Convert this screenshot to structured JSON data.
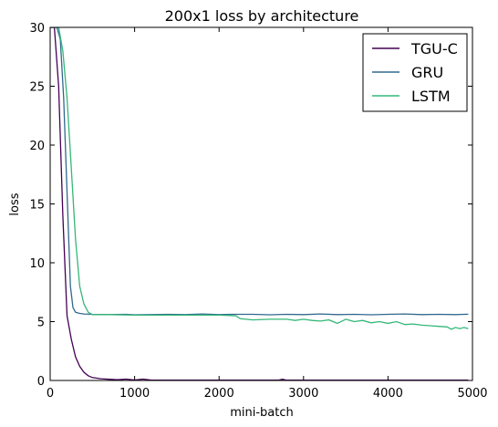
{
  "chart_data": {
    "type": "line",
    "title": "200x1 loss by architecture",
    "xlabel": "mini-batch",
    "ylabel": "loss",
    "xlim": [
      0,
      5000
    ],
    "ylim": [
      0,
      30
    ],
    "xticks": [
      0,
      1000,
      2000,
      3000,
      4000,
      5000
    ],
    "yticks": [
      0,
      5,
      10,
      15,
      20,
      25,
      30
    ],
    "grid": false,
    "legend_position": "top-right",
    "series": [
      {
        "name": "TGU-C",
        "color": "#440154",
        "points": [
          [
            0,
            30
          ],
          [
            50,
            30
          ],
          [
            100,
            25
          ],
          [
            150,
            14
          ],
          [
            200,
            5.5
          ],
          [
            250,
            3.5
          ],
          [
            300,
            2
          ],
          [
            350,
            1.2
          ],
          [
            400,
            0.7
          ],
          [
            450,
            0.4
          ],
          [
            500,
            0.25
          ],
          [
            600,
            0.15
          ],
          [
            700,
            0.1
          ],
          [
            800,
            0.06
          ],
          [
            900,
            0.12
          ],
          [
            1000,
            0.04
          ],
          [
            1100,
            0.12
          ],
          [
            1200,
            0.03
          ],
          [
            1500,
            0.02
          ],
          [
            2000,
            0.02
          ],
          [
            2500,
            0.02
          ],
          [
            2700,
            0.02
          ],
          [
            2750,
            0.1
          ],
          [
            2800,
            0.02
          ],
          [
            3000,
            0.02
          ],
          [
            4000,
            0.02
          ],
          [
            4950,
            0.02
          ]
        ]
      },
      {
        "name": "GRU",
        "color": "#31688e",
        "points": [
          [
            0,
            30
          ],
          [
            80,
            30
          ],
          [
            120,
            29
          ],
          [
            160,
            24
          ],
          [
            200,
            16
          ],
          [
            240,
            8
          ],
          [
            270,
            6.2
          ],
          [
            300,
            5.8
          ],
          [
            350,
            5.7
          ],
          [
            400,
            5.65
          ],
          [
            500,
            5.62
          ],
          [
            700,
            5.6
          ],
          [
            900,
            5.62
          ],
          [
            1000,
            5.58
          ],
          [
            1200,
            5.6
          ],
          [
            1400,
            5.62
          ],
          [
            1600,
            5.6
          ],
          [
            1800,
            5.65
          ],
          [
            2000,
            5.6
          ],
          [
            2200,
            5.62
          ],
          [
            2400,
            5.62
          ],
          [
            2600,
            5.58
          ],
          [
            2800,
            5.62
          ],
          [
            3000,
            5.6
          ],
          [
            3200,
            5.65
          ],
          [
            3400,
            5.6
          ],
          [
            3600,
            5.62
          ],
          [
            3800,
            5.58
          ],
          [
            4000,
            5.62
          ],
          [
            4200,
            5.65
          ],
          [
            4400,
            5.6
          ],
          [
            4600,
            5.62
          ],
          [
            4800,
            5.6
          ],
          [
            4950,
            5.63
          ]
        ]
      },
      {
        "name": "LSTM",
        "color": "#35b779",
        "points": [
          [
            0,
            30
          ],
          [
            100,
            30
          ],
          [
            150,
            28
          ],
          [
            200,
            24
          ],
          [
            250,
            18
          ],
          [
            300,
            12
          ],
          [
            350,
            8
          ],
          [
            400,
            6.5
          ],
          [
            450,
            5.8
          ],
          [
            500,
            5.6
          ],
          [
            700,
            5.6
          ],
          [
            1000,
            5.55
          ],
          [
            1500,
            5.55
          ],
          [
            2000,
            5.55
          ],
          [
            2200,
            5.5
          ],
          [
            2250,
            5.25
          ],
          [
            2400,
            5.15
          ],
          [
            2600,
            5.2
          ],
          [
            2800,
            5.2
          ],
          [
            2900,
            5.1
          ],
          [
            3000,
            5.2
          ],
          [
            3100,
            5.1
          ],
          [
            3200,
            5.05
          ],
          [
            3300,
            5.15
          ],
          [
            3400,
            4.85
          ],
          [
            3500,
            5.2
          ],
          [
            3600,
            5.0
          ],
          [
            3700,
            5.1
          ],
          [
            3800,
            4.9
          ],
          [
            3900,
            5.0
          ],
          [
            4000,
            4.85
          ],
          [
            4100,
            5.0
          ],
          [
            4200,
            4.75
          ],
          [
            4300,
            4.8
          ],
          [
            4400,
            4.7
          ],
          [
            4500,
            4.65
          ],
          [
            4600,
            4.6
          ],
          [
            4700,
            4.55
          ],
          [
            4750,
            4.35
          ],
          [
            4800,
            4.5
          ],
          [
            4850,
            4.4
          ],
          [
            4900,
            4.5
          ],
          [
            4950,
            4.4
          ]
        ]
      }
    ]
  }
}
